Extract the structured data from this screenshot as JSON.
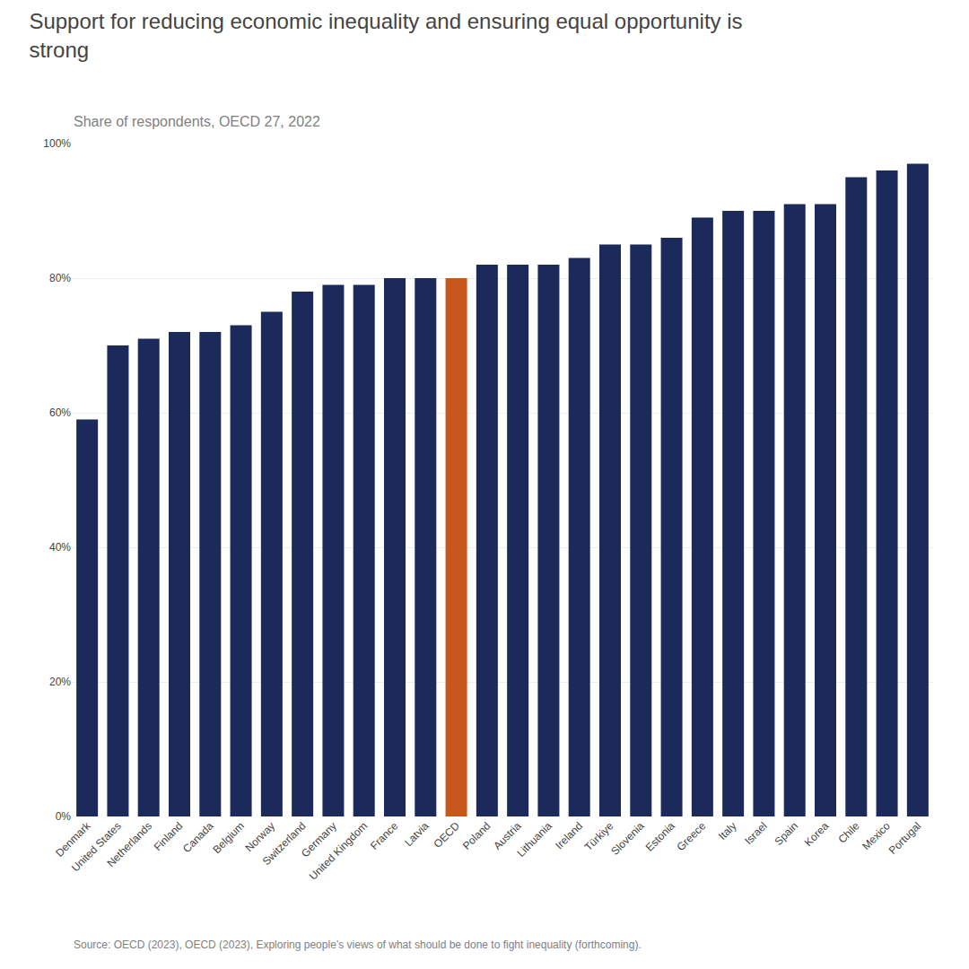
{
  "chart_data": {
    "type": "bar",
    "title": "Support for reducing economic inequality and ensuring equal opportunity is\nstrong",
    "subtitle": "Share of respondents, OECD 27, 2022",
    "annotations": [
      "Source: OECD (2023), OECD (2023), Exploring people’s views of what should be done to fight inequality (forthcoming)."
    ],
    "categories": [
      "Denmark",
      "United States",
      "Netherlands",
      "Finland",
      "Canada",
      "Belgium",
      "Norway",
      "Switzerland",
      "Germany",
      "United Kingdom",
      "France",
      "Latvia",
      "OECD",
      "Poland",
      "Austria",
      "Lithuania",
      "Ireland",
      "Türkiye",
      "Slovenia",
      "Estonia",
      "Greece",
      "Italy",
      "Israel",
      "Spain",
      "Korea",
      "Chile",
      "Mexico",
      "Portugal"
    ],
    "values": [
      59,
      70,
      71,
      72,
      72,
      73,
      75,
      78,
      79,
      79,
      80,
      80,
      80,
      82,
      82,
      82,
      83,
      85,
      85,
      86,
      89,
      90,
      90,
      91,
      91,
      95,
      96,
      97
    ],
    "colors": [
      "#1B2A5A",
      "#1B2A5A",
      "#1B2A5A",
      "#1B2A5A",
      "#1B2A5A",
      "#1B2A5A",
      "#1B2A5A",
      "#1B2A5A",
      "#1B2A5A",
      "#1B2A5A",
      "#1B2A5A",
      "#1B2A5A",
      "#C8571B",
      "#1B2A5A",
      "#1B2A5A",
      "#1B2A5A",
      "#1B2A5A",
      "#1B2A5A",
      "#1B2A5A",
      "#1B2A5A",
      "#1B2A5A",
      "#1B2A5A",
      "#1B2A5A",
      "#1B2A5A",
      "#1B2A5A",
      "#1B2A5A",
      "#1B2A5A",
      "#1B2A5A"
    ],
    "ylim": [
      0,
      100
    ],
    "yticks": [
      {
        "value": 0,
        "label": "0%"
      },
      {
        "value": 20,
        "label": "20%"
      },
      {
        "value": 40,
        "label": "40%"
      },
      {
        "value": 60,
        "label": "60%"
      },
      {
        "value": 80,
        "label": "80%"
      },
      {
        "value": 100,
        "label": "100%"
      }
    ],
    "grid": true
  }
}
